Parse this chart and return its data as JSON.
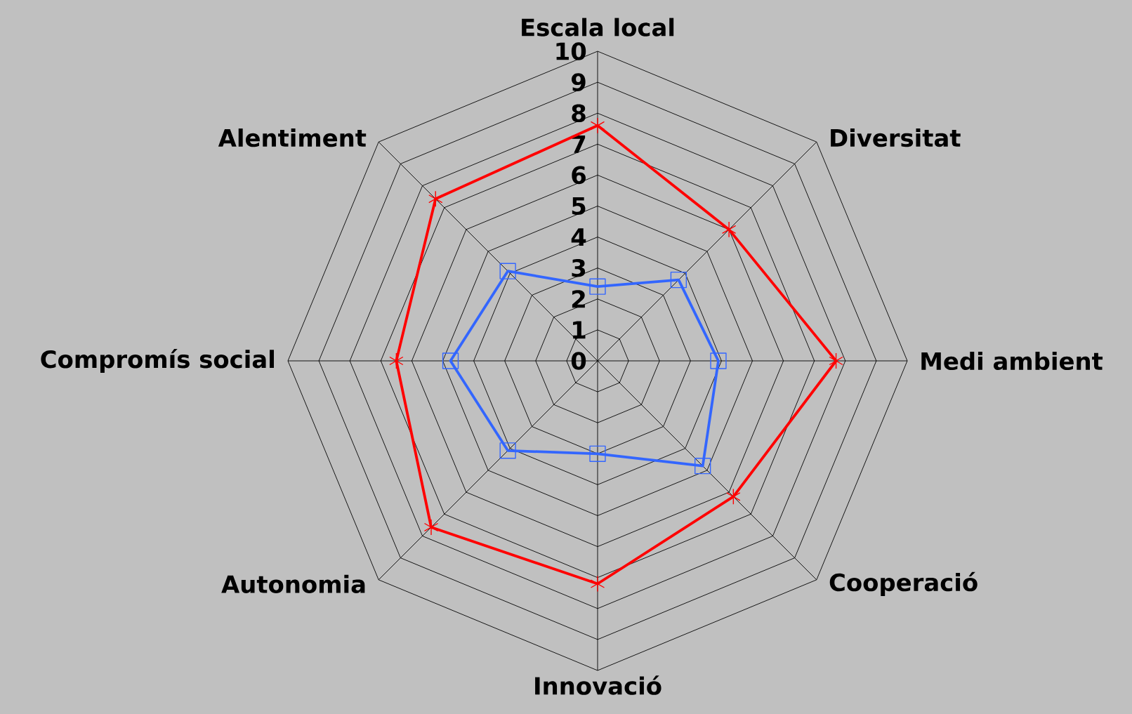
{
  "chart_data": {
    "type": "radar",
    "categories": [
      "Escala local",
      "Diversitat",
      "Medi ambient",
      "Cooperació",
      "Innovació",
      "Autonomia",
      "Compromís social",
      "Alentiment"
    ],
    "series": [
      {
        "color": "#ff0000",
        "marker": "star",
        "values": [
          7.6,
          6.0,
          7.7,
          6.2,
          7.2,
          7.6,
          6.5,
          7.4
        ]
      },
      {
        "color": "#3366ff",
        "marker": "square",
        "values": [
          2.4,
          3.7,
          3.9,
          4.8,
          3.0,
          4.1,
          4.75,
          4.1
        ]
      }
    ],
    "ylim": [
      0,
      10
    ],
    "yticks": [
      0,
      1,
      2,
      3,
      4,
      5,
      6,
      7,
      8,
      9,
      10
    ],
    "grid": true
  }
}
